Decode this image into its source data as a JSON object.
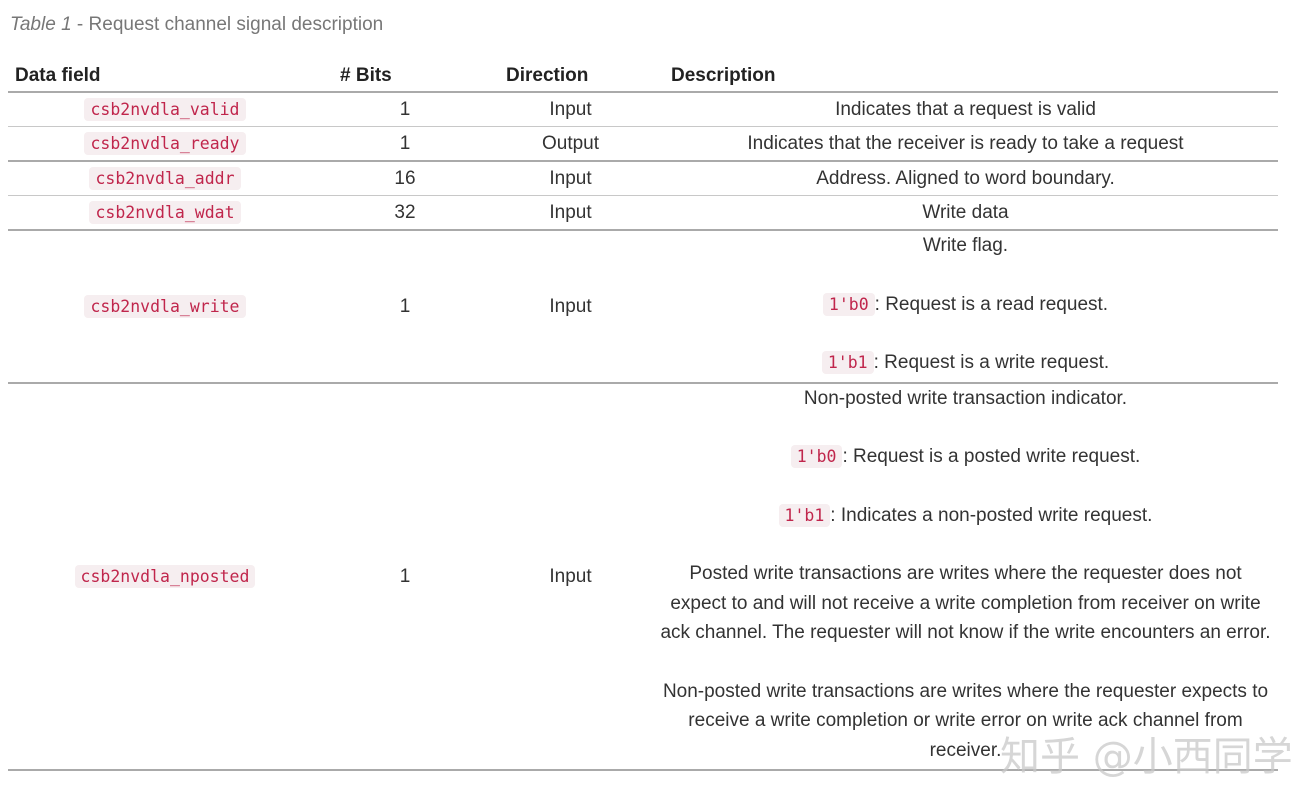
{
  "caption": {
    "label": "Table 1",
    "text": " - Request channel signal description"
  },
  "headers": [
    "Data field",
    "# Bits",
    "Direction",
    "Description"
  ],
  "rows": [
    {
      "field": "csb2nvdla_valid",
      "bits": "1",
      "direction": "Input",
      "desc": [
        "Indicates that a request is valid"
      ]
    },
    {
      "field": "csb2nvdla_ready",
      "bits": "1",
      "direction": "Output",
      "desc": [
        "Indicates that the receiver is ready to take a request"
      ]
    },
    {
      "field": "csb2nvdla_addr",
      "bits": "16",
      "direction": "Input",
      "desc": [
        "Address. Aligned to word boundary."
      ]
    },
    {
      "field": "csb2nvdla_wdat",
      "bits": "32",
      "direction": "Input",
      "desc": [
        "Write data"
      ]
    },
    {
      "field": "csb2nvdla_write",
      "bits": "1",
      "direction": "Input",
      "desc": [
        "Write flag."
      ],
      "codes": [
        {
          "code": "1'b0",
          "text": ": Request is a read request."
        },
        {
          "code": "1'b1",
          "text": ": Request is a write request."
        }
      ]
    },
    {
      "field": "csb2nvdla_nposted",
      "bits": "1",
      "direction": "Input",
      "desc": [
        "Non-posted write transaction indicator."
      ],
      "codes": [
        {
          "code": "1'b0",
          "text": ": Request is a posted write request."
        },
        {
          "code": "1'b1",
          "text": ": Indicates a non-posted write request."
        }
      ],
      "extra": [
        "Posted write transactions are writes where the requester does not expect to and will not receive a write completion from receiver on write ack channel. The requester will not know if the write encounters an error.",
        "Non-posted write transactions are writes where the requester expects to receive a write completion or write error on write ack channel from receiver."
      ]
    }
  ],
  "watermark": "知乎 @小西同学"
}
